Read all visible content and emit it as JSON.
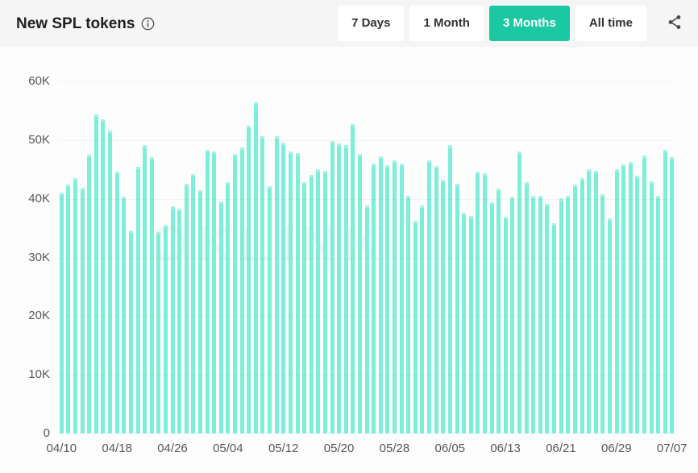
{
  "header": {
    "title": "New SPL tokens",
    "time_ranges": [
      "7 Days",
      "1 Month",
      "3 Months",
      "All time"
    ],
    "active_range": "3 Months",
    "icons": {
      "info": "info-circle-icon",
      "share": "share-nodes-icon"
    }
  },
  "watermark": "OKLINK",
  "colors": {
    "accent_green": "#1cc8a3",
    "bar_mint": "#7deeda",
    "header_bg": "#f5f5f6",
    "page_bg": "#fdfdfd",
    "axis_label": "#575757",
    "title_text": "#1f1f1f"
  },
  "chart_data": {
    "type": "bar",
    "title": "New SPL tokens",
    "values_unit": "thousands (K)",
    "ylim_k": [
      0,
      60
    ],
    "y_ticks": [
      "0",
      "10K",
      "20K",
      "30K",
      "40K",
      "50K",
      "60K"
    ],
    "x_tick_labels": [
      "04/10",
      "04/18",
      "04/26",
      "05/04",
      "05/12",
      "05/20",
      "05/28",
      "06/05",
      "06/13",
      "06/21",
      "06/29",
      "07/07"
    ],
    "x_tick_interval": 8,
    "grid": "faint horizontal lines",
    "legend": "none",
    "x": [
      "04/10",
      "04/11",
      "04/12",
      "04/13",
      "04/14",
      "04/15",
      "04/16",
      "04/17",
      "04/18",
      "04/19",
      "04/20",
      "04/21",
      "04/22",
      "04/23",
      "04/24",
      "04/25",
      "04/26",
      "04/27",
      "04/28",
      "04/29",
      "04/30",
      "05/01",
      "05/02",
      "05/03",
      "05/04",
      "05/05",
      "05/06",
      "05/07",
      "05/08",
      "05/09",
      "05/10",
      "05/11",
      "05/12",
      "05/13",
      "05/14",
      "05/15",
      "05/16",
      "05/17",
      "05/18",
      "05/19",
      "05/20",
      "05/21",
      "05/22",
      "05/23",
      "05/24",
      "05/25",
      "05/26",
      "05/27",
      "05/28",
      "05/29",
      "05/30",
      "05/31",
      "06/01",
      "06/02",
      "06/03",
      "06/04",
      "06/05",
      "06/06",
      "06/07",
      "06/08",
      "06/09",
      "06/10",
      "06/11",
      "06/12",
      "06/13",
      "06/14",
      "06/15",
      "06/16",
      "06/17",
      "06/18",
      "06/19",
      "06/20",
      "06/21",
      "06/22",
      "06/23",
      "06/24",
      "06/25",
      "06/26",
      "06/27",
      "06/28",
      "06/29",
      "06/30",
      "07/01",
      "07/02",
      "07/03",
      "07/04",
      "07/05",
      "07/06",
      "07/07"
    ],
    "values_k": [
      41.1,
      42.4,
      43.5,
      41.9,
      47.5,
      54.4,
      53.5,
      51.6,
      44.6,
      40.4,
      34.6,
      45.5,
      49.2,
      47.1,
      34.3,
      35.5,
      38.7,
      38.3,
      42.5,
      44.2,
      41.5,
      48.3,
      48.1,
      39.6,
      42.8,
      47.6,
      48.8,
      52.4,
      56.5,
      50.7,
      42.1,
      50.7,
      49.5,
      48.1,
      47.8,
      42.8,
      44.1,
      45.0,
      44.8,
      49.8,
      49.4,
      49.2,
      52.7,
      47.7,
      38.8,
      46.0,
      47.3,
      45.7,
      46.5,
      46.0,
      40.5,
      36.2,
      38.9,
      46.5,
      45.6,
      43.3,
      49.2,
      42.6,
      37.6,
      37.1,
      44.6,
      44.4,
      39.4,
      41.7,
      36.9,
      40.3,
      48.0,
      42.8,
      40.5,
      40.5,
      39.2,
      35.9,
      40.1,
      40.5,
      42.4,
      43.5,
      45.0,
      44.7,
      40.8,
      36.6,
      45.1,
      45.8,
      46.3,
      44.0,
      47.4,
      43.0,
      40.5,
      48.3,
      47.1
    ]
  }
}
